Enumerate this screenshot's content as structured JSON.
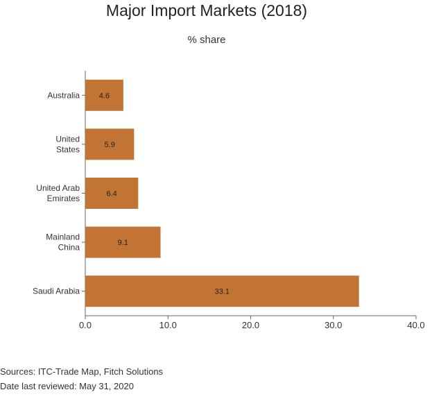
{
  "chart_data": {
    "type": "bar",
    "orientation": "horizontal",
    "title": "Major Import Markets (2018)",
    "subtitle": "% share",
    "categories": [
      [
        "Australia"
      ],
      [
        "United",
        "States"
      ],
      [
        "United Arab",
        "Emirates"
      ],
      [
        "Mainland",
        "China"
      ],
      [
        "Saudi Arabia"
      ]
    ],
    "values": [
      4.6,
      5.9,
      6.4,
      9.1,
      33.1
    ],
    "data_labels": [
      "4.6",
      "5.9",
      "6.4",
      "9.1",
      "33.1"
    ],
    "xlim": [
      0,
      40
    ],
    "xticks": [
      "0.0",
      "10.0",
      "20.0",
      "30.0",
      "40.0"
    ],
    "xlabel": "",
    "ylabel": "",
    "grid": false,
    "bar_color": "#C27434"
  },
  "footer": {
    "sources": "Sources: ITC-Trade Map, Fitch Solutions",
    "reviewed": "Date last reviewed: May 31, 2020"
  }
}
